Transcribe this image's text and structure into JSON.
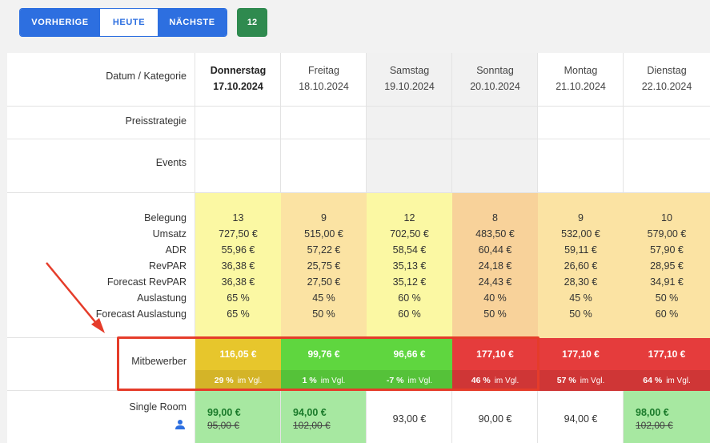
{
  "toolbar": {
    "prev_label": "VORHERIGE",
    "today_label": "HEUTE",
    "next_label": "NÄCHSTE",
    "count_badge": "12"
  },
  "table": {
    "header_label": "Datum / Kategorie",
    "row_labels": {
      "strategy": "Preisstrategie",
      "events": "Events",
      "competitor": "Mitbewerber",
      "room": "Single Room"
    },
    "metric_labels": [
      "Belegung",
      "Umsatz",
      "ADR",
      "RevPAR",
      "Forecast RevPAR",
      "Auslastung",
      "Forecast Auslastung"
    ],
    "compare_suffix": "im Vgl.",
    "days": [
      {
        "weekday": "Donnerstag",
        "date": "17.10.2024",
        "bold": true,
        "metrics": [
          "13",
          "727,50 €",
          "55,96 €",
          "36,38 €",
          "36,38 €",
          "65 %",
          "65 %"
        ],
        "competitor_price": "116,05 €",
        "competitor_pct": "29 %",
        "room_price": "99,00 €",
        "room_old": "95,00 €"
      },
      {
        "weekday": "Freitag",
        "date": "18.10.2024",
        "metrics": [
          "9",
          "515,00 €",
          "57,22 €",
          "25,75 €",
          "27,50 €",
          "45 %",
          "50 %"
        ],
        "competitor_price": "99,76 €",
        "competitor_pct": "1 %",
        "room_price": "94,00 €",
        "room_old": "102,00 €"
      },
      {
        "weekday": "Samstag",
        "date": "19.10.2024",
        "metrics": [
          "12",
          "702,50 €",
          "58,54 €",
          "35,13 €",
          "35,12 €",
          "60 %",
          "60 %"
        ],
        "competitor_price": "96,66 €",
        "competitor_pct": "-7 %",
        "room_plain": "93,00 €"
      },
      {
        "weekday": "Sonntag",
        "date": "20.10.2024",
        "metrics": [
          "8",
          "483,50 €",
          "60,44 €",
          "24,18 €",
          "24,43 €",
          "40 %",
          "50 %"
        ],
        "competitor_price": "177,10 €",
        "competitor_pct": "46 %",
        "room_plain": "90,00 €"
      },
      {
        "weekday": "Montag",
        "date": "21.10.2024",
        "metrics": [
          "9",
          "532,00 €",
          "59,11 €",
          "26,60 €",
          "28,30 €",
          "45 %",
          "50 %"
        ],
        "competitor_price": "177,10 €",
        "competitor_pct": "57 %",
        "room_plain": "94,00 €"
      },
      {
        "weekday": "Dienstag",
        "date": "22.10.2024",
        "metrics": [
          "10",
          "579,00 €",
          "57,90 €",
          "28,95 €",
          "34,91 €",
          "50 %",
          "60 %"
        ],
        "competitor_price": "177,10 €",
        "competitor_pct": "64 %",
        "room_price": "98,00 €",
        "room_old": "102,00 €"
      }
    ]
  },
  "colors": {
    "primary": "#2d6fe0",
    "badge_green": "#2f8a4f",
    "highlight_red": "#e53c2a",
    "yellow_light": "#fbf8a3",
    "orange_light": "#fbe3a3",
    "salmon": "#f8d29a",
    "competitor_yellow": "#e7c62c",
    "competitor_green": "#5fd63f",
    "competitor_red": "#e53c3c",
    "room_green": "#a7e8a1"
  },
  "icons": {
    "room_icon": "person-icon",
    "annotation_arrow": "arrow-icon"
  }
}
